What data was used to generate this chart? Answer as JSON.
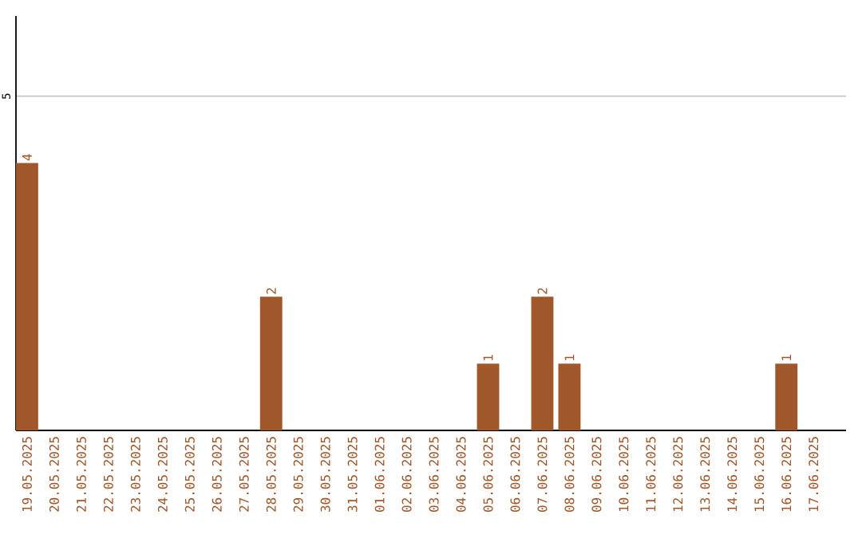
{
  "chart_data": {
    "type": "bar",
    "categories": [
      "19.05.2025",
      "20.05.2025",
      "21.05.2025",
      "22.05.2025",
      "23.05.2025",
      "24.05.2025",
      "25.05.2025",
      "26.05.2025",
      "27.05.2025",
      "28.05.2025",
      "29.05.2025",
      "30.05.2025",
      "31.05.2025",
      "01.06.2025",
      "02.06.2025",
      "03.06.2025",
      "04.06.2025",
      "05.06.2025",
      "06.06.2025",
      "07.06.2025",
      "08.06.2025",
      "09.06.2025",
      "10.06.2025",
      "11.06.2025",
      "12.06.2025",
      "13.06.2025",
      "14.06.2025",
      "15.06.2025",
      "16.06.2025",
      "17.06.2025"
    ],
    "values": [
      4,
      0,
      0,
      0,
      0,
      0,
      0,
      0,
      0,
      2,
      0,
      0,
      0,
      0,
      0,
      0,
      0,
      1,
      0,
      2,
      1,
      0,
      0,
      0,
      0,
      0,
      0,
      0,
      1,
      0
    ],
    "value_labels": [
      "4",
      null,
      null,
      null,
      null,
      null,
      null,
      null,
      null,
      "2",
      null,
      null,
      null,
      null,
      null,
      null,
      null,
      "1",
      null,
      "2",
      "1",
      null,
      null,
      null,
      null,
      null,
      null,
      null,
      "1",
      null
    ],
    "color": "#a0572a",
    "ylim": [
      0,
      6.2
    ],
    "yticks": [
      {
        "value": 0,
        "label": null
      },
      5
    ],
    "grid": "y"
  }
}
